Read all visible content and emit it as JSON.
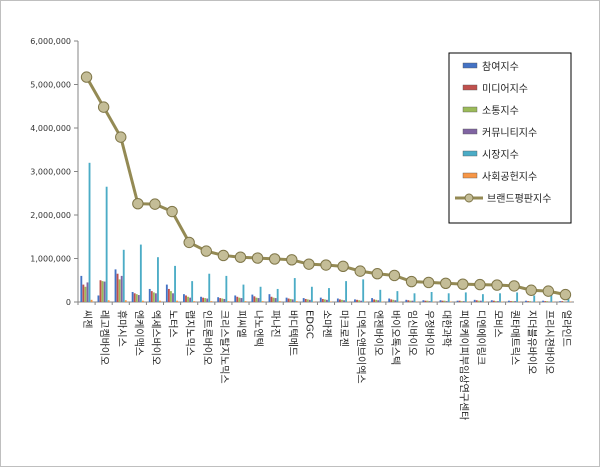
{
  "chart_data": {
    "type": "bar",
    "ylim": [
      0,
      6000000
    ],
    "yticks": [
      "0",
      "1,000,000",
      "2,000,000",
      "3,000,000",
      "4,000,000",
      "5,000,000",
      "6,000,000"
    ],
    "grid": false,
    "legend_position": "top-right",
    "categories": [
      "씨젠",
      "레고켐바이오",
      "휴마시스",
      "엔케이맥스",
      "엑세스바이오",
      "노터스",
      "랩지노믹스",
      "인트론바이오",
      "크리스탈지노믹스",
      "피씨엘",
      "나노엔텍",
      "파나진",
      "바디텍메드",
      "EDGC",
      "소마젠",
      "마크로젠",
      "디엑스앤브이엑스",
      "엔젠바이오",
      "바이오톡스텍",
      "임신바이오",
      "우정바이오",
      "대한과학",
      "피엔케이피부임상연구센타",
      "디엔에이링크",
      "모비스",
      "퀀타매트릭스",
      "지더블유바이오",
      "프리시젼바이오",
      "얼라인드"
    ],
    "series": [
      {
        "name": "참여지수",
        "color": "#4472c4",
        "values": [
          600000,
          150000,
          750000,
          230000,
          300000,
          400000,
          180000,
          120000,
          110000,
          150000,
          170000,
          180000,
          100000,
          90000,
          100000,
          80000,
          60000,
          90000,
          80000,
          50000,
          40000,
          40000,
          30000,
          50000,
          40000,
          30000,
          30000,
          30000,
          20000
        ]
      },
      {
        "name": "미디어지수",
        "color": "#c0504d",
        "values": [
          400000,
          500000,
          650000,
          200000,
          250000,
          300000,
          150000,
          100000,
          90000,
          120000,
          130000,
          120000,
          80000,
          70000,
          70000,
          60000,
          50000,
          60000,
          60000,
          40000,
          30000,
          30000,
          30000,
          40000,
          30000,
          20000,
          20000,
          20000,
          20000
        ]
      },
      {
        "name": "소통지수",
        "color": "#9bbb59",
        "values": [
          350000,
          480000,
          520000,
          180000,
          220000,
          250000,
          120000,
          90000,
          80000,
          100000,
          100000,
          100000,
          70000,
          60000,
          60000,
          50000,
          40000,
          50000,
          50000,
          30000,
          30000,
          30000,
          20000,
          30000,
          20000,
          20000,
          20000,
          20000,
          10000
        ]
      },
      {
        "name": "커뮤니티지수",
        "color": "#8064a2",
        "values": [
          450000,
          470000,
          600000,
          160000,
          200000,
          200000,
          100000,
          80000,
          70000,
          90000,
          90000,
          90000,
          60000,
          50000,
          50000,
          40000,
          30000,
          40000,
          40000,
          30000,
          20000,
          20000,
          20000,
          30000,
          20000,
          20000,
          10000,
          10000,
          10000
        ]
      },
      {
        "name": "시장지수",
        "color": "#4bacc6",
        "values": [
          3200000,
          2650000,
          1200000,
          1320000,
          1030000,
          830000,
          480000,
          650000,
          600000,
          400000,
          350000,
          300000,
          550000,
          350000,
          320000,
          480000,
          520000,
          280000,
          250000,
          200000,
          230000,
          200000,
          220000,
          180000,
          200000,
          220000,
          150000,
          180000,
          150000
        ]
      },
      {
        "name": "사회공헌지수",
        "color": "#f79646",
        "values": [
          50000,
          40000,
          40000,
          30000,
          30000,
          30000,
          20000,
          20000,
          20000,
          20000,
          20000,
          20000,
          20000,
          10000,
          10000,
          10000,
          10000,
          10000,
          10000,
          10000,
          10000,
          10000,
          10000,
          10000,
          10000,
          10000,
          10000,
          10000,
          10000
        ]
      }
    ],
    "line_series": {
      "name": "브랜드평판지수",
      "color": "#948a54",
      "values": [
        5170000,
        4480000,
        3790000,
        2260000,
        2250000,
        2080000,
        1370000,
        1170000,
        1070000,
        1030000,
        1010000,
        990000,
        970000,
        870000,
        850000,
        820000,
        710000,
        650000,
        610000,
        470000,
        450000,
        430000,
        410000,
        400000,
        390000,
        370000,
        270000,
        250000,
        170000
      ]
    }
  }
}
